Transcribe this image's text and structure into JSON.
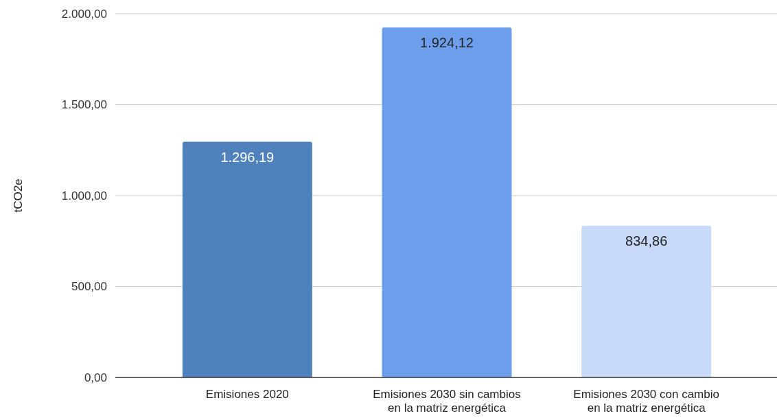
{
  "chart_data": {
    "type": "bar",
    "ylabel": "tCO2e",
    "categories": [
      "Emisiones 2020",
      "Emisiones 2030 sin cambios en la matriz energética",
      "Emisiones 2030 con cambio en la matriz energética"
    ],
    "values": [
      1296.19,
      1924.12,
      834.86
    ],
    "colors": [
      "#4f81bd",
      "#6d9eeb",
      "#c9daf8"
    ],
    "value_labels": [
      "1.296,19",
      "1.924,12",
      "834,86"
    ],
    "ylim": [
      0,
      2000
    ],
    "yticks": [
      {
        "value": 0,
        "label": "0,00"
      },
      {
        "value": 500,
        "label": "500,00"
      },
      {
        "value": 1000,
        "label": "1.000,00"
      },
      {
        "value": 1500,
        "label": "1.500,00"
      },
      {
        "value": 2000,
        "label": "2.000,00"
      }
    ],
    "grid": "y"
  }
}
